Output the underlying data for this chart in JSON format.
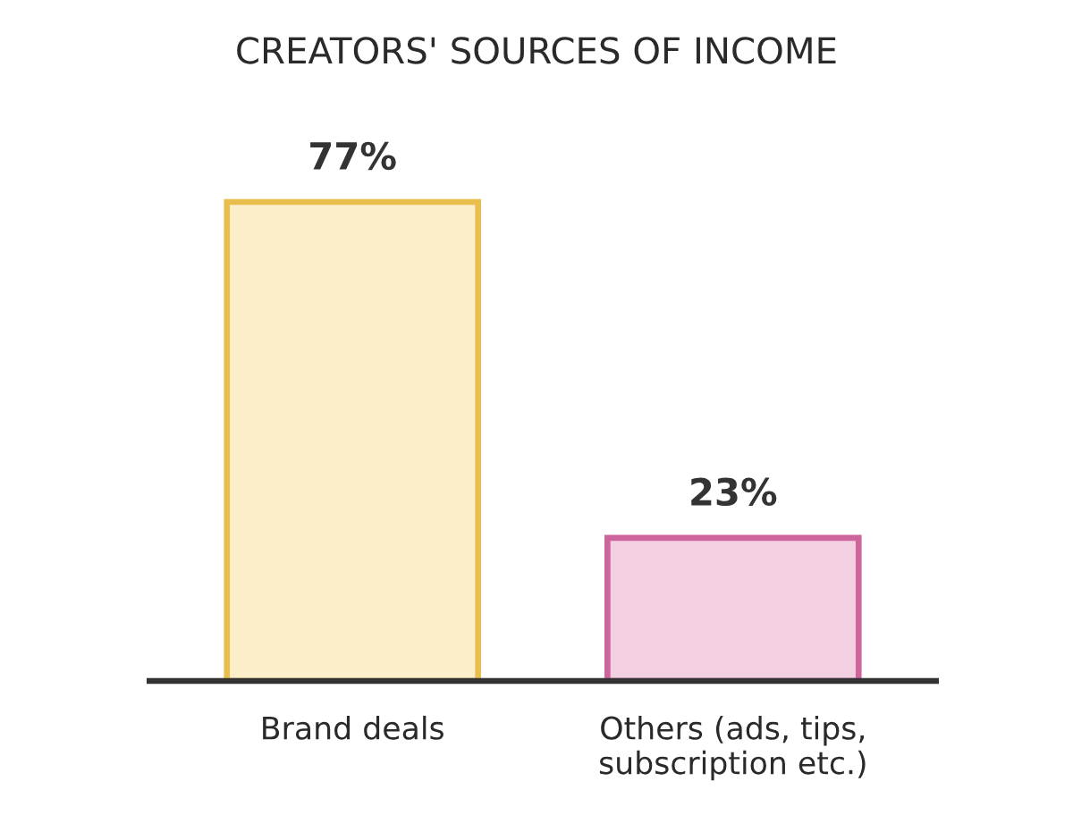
{
  "chart_data": {
    "type": "bar",
    "title": "CREATORS' SOURCES OF INCOME",
    "categories": [
      "Brand deals",
      "Others (ads, tips,\nsubscription etc.)"
    ],
    "values": [
      77,
      23
    ],
    "colors": [
      "#fbeecb",
      "#f2d0e2"
    ],
    "value_labels": [
      "77%",
      "23%"
    ],
    "tick_labels": "x",
    "grid": false,
    "legend": false
  }
}
